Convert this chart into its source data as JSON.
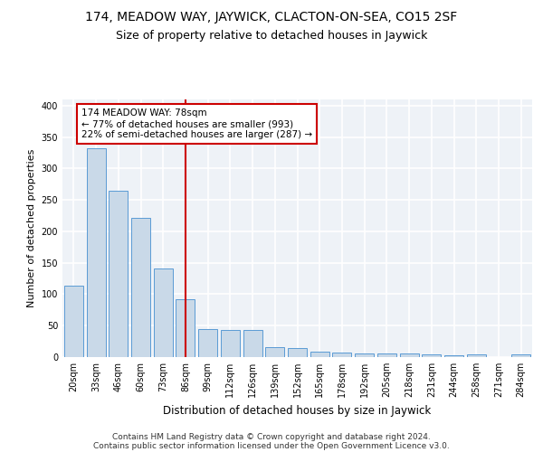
{
  "title1": "174, MEADOW WAY, JAYWICK, CLACTON-ON-SEA, CO15 2SF",
  "title2": "Size of property relative to detached houses in Jaywick",
  "xlabel": "Distribution of detached houses by size in Jaywick",
  "ylabel": "Number of detached properties",
  "categories": [
    "20sqm",
    "33sqm",
    "46sqm",
    "60sqm",
    "73sqm",
    "86sqm",
    "99sqm",
    "112sqm",
    "126sqm",
    "139sqm",
    "152sqm",
    "165sqm",
    "178sqm",
    "192sqm",
    "205sqm",
    "218sqm",
    "231sqm",
    "244sqm",
    "258sqm",
    "271sqm",
    "284sqm"
  ],
  "values": [
    114,
    333,
    265,
    222,
    141,
    92,
    45,
    43,
    43,
    16,
    15,
    9,
    7,
    6,
    6,
    6,
    4,
    3,
    4,
    0,
    5
  ],
  "bar_color": "#c9d9e8",
  "bar_edge_color": "#5b9bd5",
  "vline_x": 5.0,
  "vline_color": "#cc0000",
  "annotation_text": "174 MEADOW WAY: 78sqm\n← 77% of detached houses are smaller (993)\n22% of semi-detached houses are larger (287) →",
  "annotation_box_color": "white",
  "annotation_box_edge": "#cc0000",
  "footer_line1": "Contains HM Land Registry data © Crown copyright and database right 2024.",
  "footer_line2": "Contains public sector information licensed under the Open Government Licence v3.0.",
  "ylim": [
    0,
    410
  ],
  "background_color": "#eef2f7",
  "grid_color": "white",
  "title1_fontsize": 10,
  "title2_fontsize": 9,
  "xlabel_fontsize": 8.5,
  "ylabel_fontsize": 8,
  "tick_fontsize": 7,
  "footer_fontsize": 6.5,
  "annot_fontsize": 7.5
}
